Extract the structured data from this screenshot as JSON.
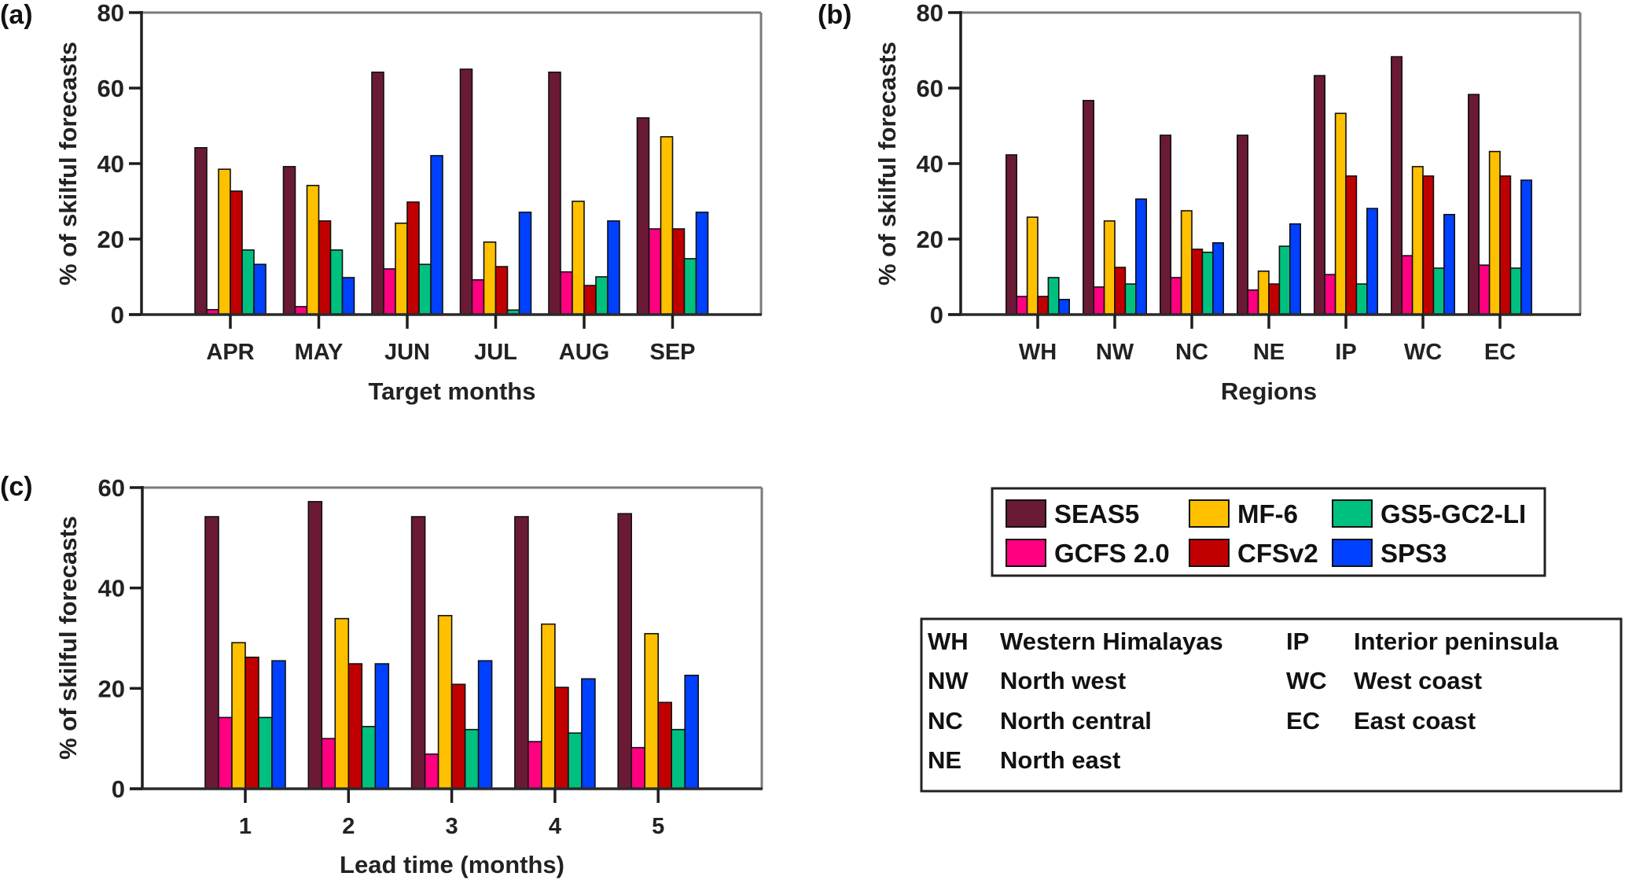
{
  "series_meta": [
    {
      "name": "SEAS5",
      "color": "#6B1A35"
    },
    {
      "name": "GCFS 2.0",
      "color": "#FF0080"
    },
    {
      "name": "MF-6",
      "color": "#FFC000"
    },
    {
      "name": "CFSv2",
      "color": "#C00000"
    },
    {
      "name": "GS5-GC2-LI",
      "color": "#00C080"
    },
    {
      "name": "SPS3",
      "color": "#0040FF"
    }
  ],
  "legend": {
    "rows": [
      [
        "SEAS5",
        "MF-6",
        "GS5-GC2-LI"
      ],
      [
        "GCFS 2.0",
        "CFSv2",
        "SPS3"
      ]
    ]
  },
  "region_key": {
    "col1": [
      {
        "abbr": "WH",
        "name": "Western Himalayas"
      },
      {
        "abbr": "NW",
        "name": "North west"
      },
      {
        "abbr": "NC",
        "name": "North central"
      },
      {
        "abbr": "NE",
        "name": "North east"
      }
    ],
    "col2": [
      {
        "abbr": "IP",
        "name": "Interior peninsula"
      },
      {
        "abbr": "WC",
        "name": "West coast"
      },
      {
        "abbr": "EC",
        "name": "East coast"
      }
    ]
  },
  "chart_data": [
    {
      "panel": "(a)",
      "type": "bar",
      "title": "",
      "xlabel": "Target months",
      "ylabel": "% of skilful forecasts",
      "ylim": [
        0,
        80
      ],
      "yticks": [
        0,
        20,
        40,
        60,
        80
      ],
      "grid": false,
      "categories": [
        "APR",
        "MAY",
        "JUN",
        "JUL",
        "AUG",
        "SEP"
      ],
      "series": [
        {
          "name": "SEAS5",
          "values": [
            44.2,
            39.2,
            64.2,
            65.0,
            64.2,
            52.1
          ]
        },
        {
          "name": "GCFS 2.0",
          "values": [
            1.3,
            2.1,
            12.1,
            9.2,
            11.3,
            22.7
          ]
        },
        {
          "name": "MF-6",
          "values": [
            38.5,
            34.2,
            24.2,
            19.2,
            30.0,
            47.1
          ]
        },
        {
          "name": "CFSv2",
          "values": [
            32.7,
            24.8,
            29.8,
            12.7,
            7.7,
            22.7
          ]
        },
        {
          "name": "GS5-GC2-LI",
          "values": [
            17.1,
            17.1,
            13.3,
            1.2,
            10.0,
            14.8
          ]
        },
        {
          "name": "SPS3",
          "values": [
            13.3,
            9.8,
            42.1,
            27.1,
            24.8,
            27.1
          ]
        }
      ]
    },
    {
      "panel": "(b)",
      "type": "bar",
      "title": "",
      "xlabel": "Regions",
      "ylabel": "% of skilful forecasts",
      "ylim": [
        0,
        80
      ],
      "yticks": [
        0,
        20,
        40,
        60,
        80
      ],
      "grid": false,
      "categories": [
        "WH",
        "NW",
        "NC",
        "NE",
        "IP",
        "WC",
        "EC"
      ],
      "series": [
        {
          "name": "SEAS5",
          "values": [
            42.3,
            56.7,
            47.5,
            47.5,
            63.3,
            68.3,
            58.3
          ]
        },
        {
          "name": "GCFS 2.0",
          "values": [
            4.8,
            7.3,
            9.8,
            6.5,
            10.6,
            15.6,
            13.1
          ]
        },
        {
          "name": "MF-6",
          "values": [
            25.8,
            24.8,
            27.5,
            11.5,
            53.3,
            39.2,
            43.2
          ]
        },
        {
          "name": "CFSv2",
          "values": [
            4.8,
            12.5,
            17.3,
            8.1,
            36.7,
            36.7,
            36.7
          ]
        },
        {
          "name": "GS5-GC2-LI",
          "values": [
            9.8,
            8.1,
            16.5,
            18.1,
            8.1,
            12.3,
            12.3
          ]
        },
        {
          "name": "SPS3",
          "values": [
            4.0,
            30.6,
            19.0,
            24.0,
            28.1,
            26.5,
            35.6
          ]
        }
      ]
    },
    {
      "panel": "(c)",
      "type": "bar",
      "title": "",
      "xlabel": "Lead time (months)",
      "ylabel": "% of skilful forecasts",
      "ylim": [
        0,
        60
      ],
      "yticks": [
        0,
        20,
        40,
        60
      ],
      "grid": false,
      "categories": [
        "1",
        "2",
        "3",
        "4",
        "5"
      ],
      "series": [
        {
          "name": "SEAS5",
          "values": [
            54.2,
            57.2,
            54.2,
            54.2,
            54.8
          ]
        },
        {
          "name": "GCFS 2.0",
          "values": [
            14.2,
            10.0,
            6.9,
            9.4,
            8.2
          ]
        },
        {
          "name": "MF-6",
          "values": [
            29.1,
            33.9,
            34.5,
            32.8,
            30.9
          ]
        },
        {
          "name": "CFSv2",
          "values": [
            26.2,
            24.9,
            20.8,
            20.2,
            17.2
          ]
        },
        {
          "name": "GS5-GC2-LI",
          "values": [
            14.2,
            12.4,
            11.8,
            11.1,
            11.8
          ]
        },
        {
          "name": "SPS3",
          "values": [
            25.5,
            24.9,
            25.5,
            21.9,
            22.6
          ]
        }
      ]
    }
  ]
}
